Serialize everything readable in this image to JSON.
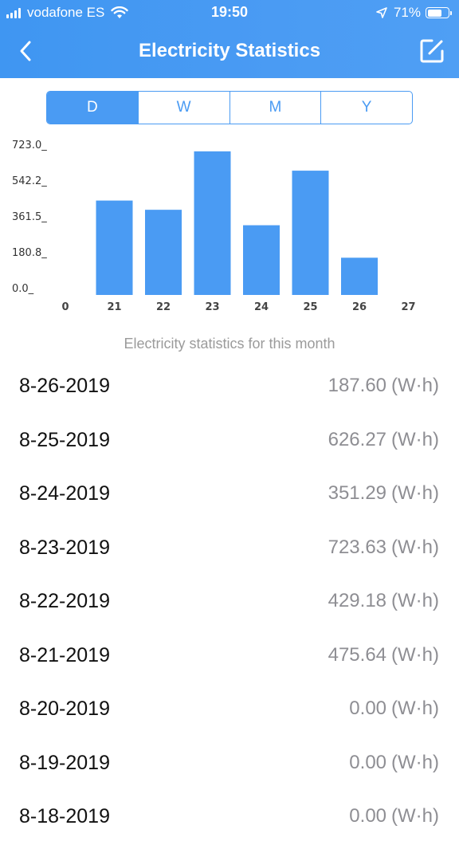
{
  "status_bar": {
    "carrier": "vodafone ES",
    "time": "19:50",
    "battery": "71%",
    "battery_level": 0.71,
    "icons": [
      "signal-icon",
      "wifi-icon",
      "location-arrow-icon",
      "battery-icon"
    ]
  },
  "navbar": {
    "title": "Electricity Statistics",
    "back_icon": "chevron-left-icon",
    "edit_icon": "edit-icon"
  },
  "tabs": [
    {
      "label": "D",
      "active": true
    },
    {
      "label": "W",
      "active": false
    },
    {
      "label": "M",
      "active": false
    },
    {
      "label": "Y",
      "active": false
    }
  ],
  "colors": {
    "accent": "#4a9bf3",
    "bar": "#4a9bf3",
    "muted_text": "#8e8e93"
  },
  "chart_data": {
    "type": "bar",
    "categories": [
      "0",
      "21",
      "22",
      "23",
      "24",
      "25",
      "26",
      "27"
    ],
    "values": [
      0,
      475.64,
      429.18,
      723.63,
      351.29,
      626.27,
      187.6,
      0
    ],
    "yticks": [
      "723.0_",
      "542.2_",
      "361.5_",
      "180.8_",
      "0.0_"
    ],
    "ylim": [
      0,
      723.0
    ],
    "grid": false
  },
  "caption": "Electricity statistics for this month",
  "entries": [
    {
      "date": "8-26-2019",
      "value": "187.60",
      "unit": "(W·h)"
    },
    {
      "date": "8-25-2019",
      "value": "626.27",
      "unit": "(W·h)"
    },
    {
      "date": "8-24-2019",
      "value": "351.29",
      "unit": "(W·h)"
    },
    {
      "date": "8-23-2019",
      "value": "723.63",
      "unit": "(W·h)"
    },
    {
      "date": "8-22-2019",
      "value": "429.18",
      "unit": "(W·h)"
    },
    {
      "date": "8-21-2019",
      "value": "475.64",
      "unit": "(W·h)"
    },
    {
      "date": "8-20-2019",
      "value": "0.00",
      "unit": "(W·h)"
    },
    {
      "date": "8-19-2019",
      "value": "0.00",
      "unit": "(W·h)"
    },
    {
      "date": "8-18-2019",
      "value": "0.00",
      "unit": "(W·h)"
    }
  ]
}
